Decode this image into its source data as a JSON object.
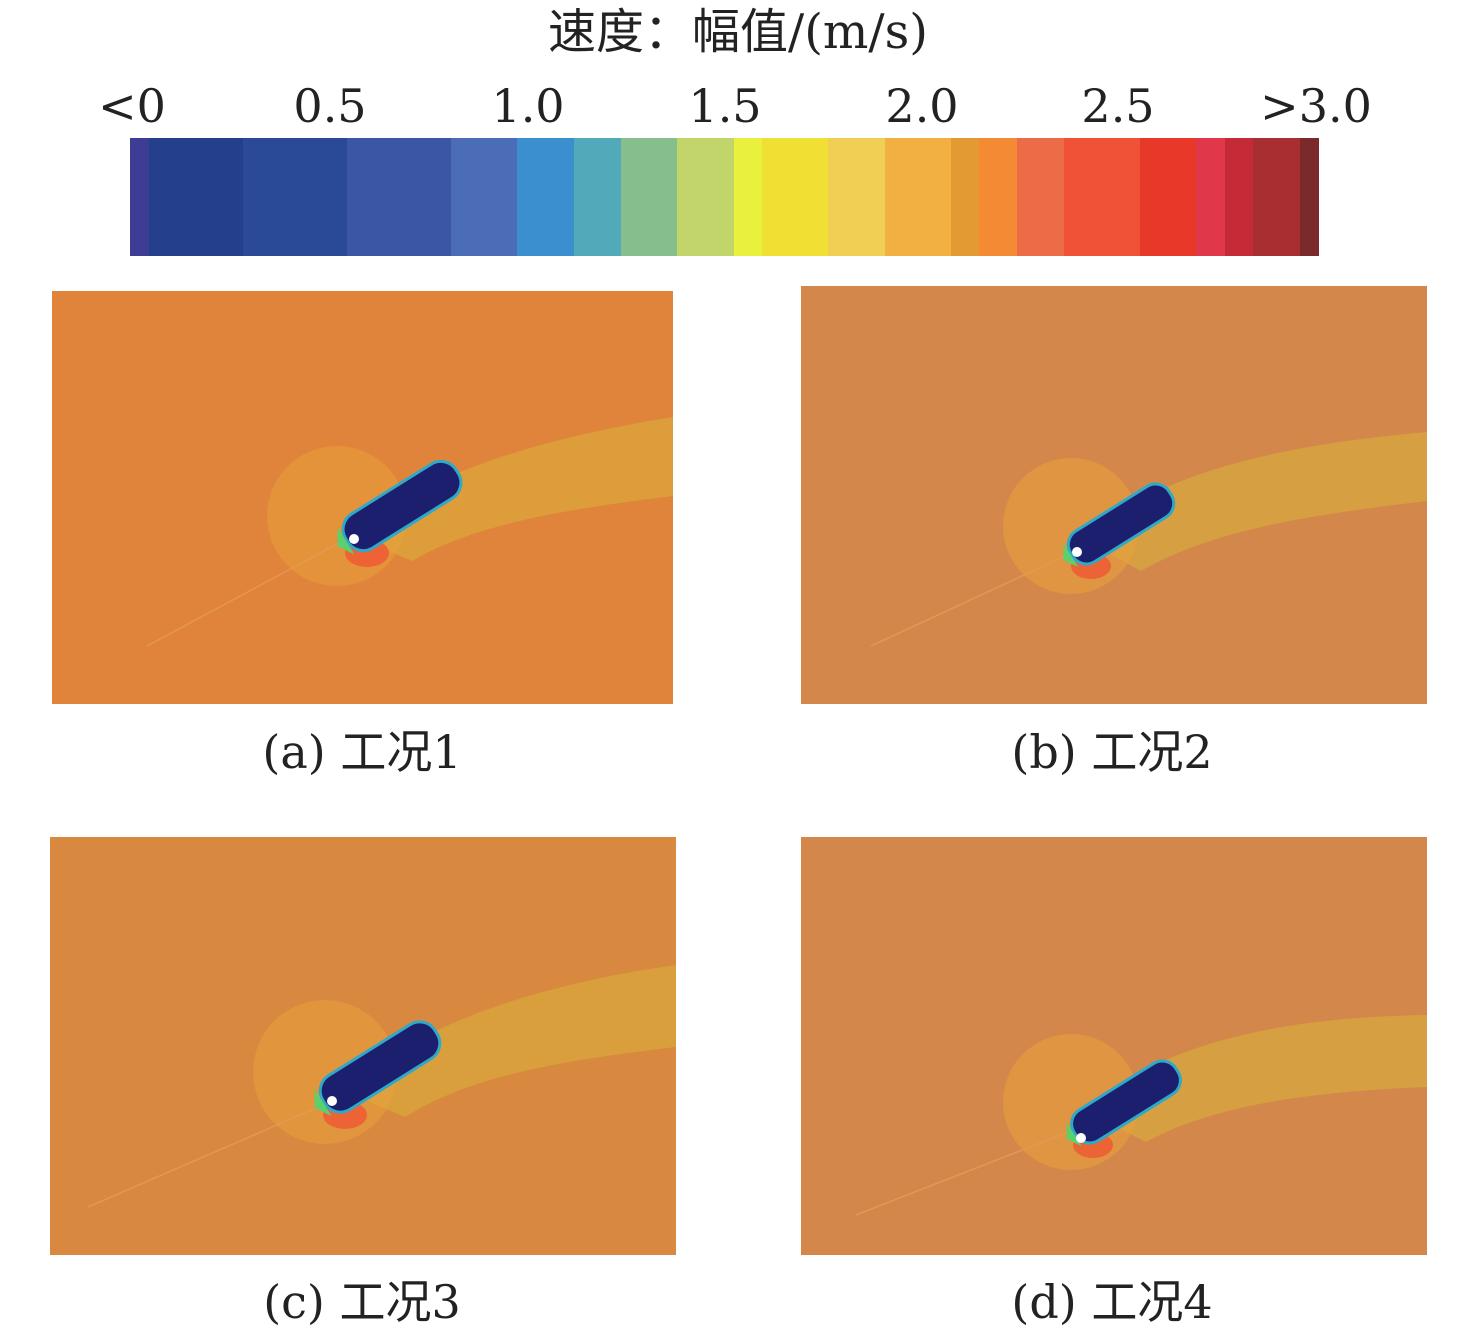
{
  "figure": {
    "title": "速度：幅值/(m/s)",
    "colorbar": {
      "ticks": [
        "<0",
        "0.5",
        "1.0",
        "1.5",
        "2.0",
        "2.5",
        ">3.0"
      ],
      "colors": [
        "#3d3d95",
        "#243f8c",
        "#2a4a98",
        "#3a56a4",
        "#4b6db8",
        "#3c8fcf",
        "#52a9b9",
        "#86bf8d",
        "#c2d56a",
        "#e9f03e",
        "#efe033",
        "#f1cf55",
        "#f2b043",
        "#e39a33",
        "#f48a33",
        "#ec6c48",
        "#f05236",
        "#e8382a",
        "#e0374a",
        "#c52b36",
        "#a92e31",
        "#7a2a2a"
      ]
    },
    "panels": [
      {
        "caption": "(a) 工况1",
        "background": "#df843a"
      },
      {
        "caption": "(b) 工况2",
        "background": "#d3874a"
      },
      {
        "caption": "(c) 工况3",
        "background": "#d8883f"
      },
      {
        "caption": "(d) 工况4",
        "background": "#d3874a"
      }
    ],
    "body_color": "#1c1f6e",
    "wake_color": "#d8b23a"
  }
}
